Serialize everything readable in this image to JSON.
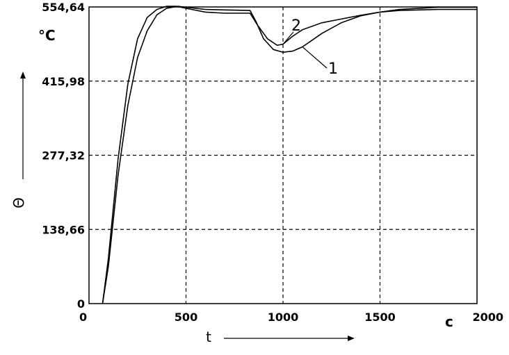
{
  "chart_data": {
    "type": "line",
    "xlabel": "t",
    "ylabel": "Θ",
    "x_unit": "c",
    "y_unit": "°C",
    "xlim": [
      0,
      2000
    ],
    "ylim": [
      0,
      554.64
    ],
    "x_ticks": [
      "0",
      "500",
      "1000",
      "1500",
      "2000"
    ],
    "y_ticks": [
      "0",
      "138,66",
      "277,32",
      "415,98",
      "554,64"
    ],
    "grid": "dashed",
    "series": [
      {
        "name": "1",
        "points": [
          [
            70,
            0
          ],
          [
            100,
            70
          ],
          [
            150,
            240
          ],
          [
            200,
            370
          ],
          [
            250,
            460
          ],
          [
            300,
            510
          ],
          [
            350,
            540
          ],
          [
            400,
            552
          ],
          [
            460,
            556
          ],
          [
            500,
            554
          ],
          [
            600,
            550
          ],
          [
            700,
            549
          ],
          [
            830,
            548
          ],
          [
            860,
            528
          ],
          [
            900,
            495
          ],
          [
            950,
            475
          ],
          [
            1000,
            470
          ],
          [
            1050,
            472
          ],
          [
            1100,
            480
          ],
          [
            1200,
            505
          ],
          [
            1300,
            525
          ],
          [
            1400,
            538
          ],
          [
            1500,
            545
          ],
          [
            1600,
            548
          ],
          [
            1800,
            550
          ],
          [
            2000,
            550
          ]
        ]
      },
      {
        "name": "2",
        "points": [
          [
            70,
            0
          ],
          [
            100,
            85
          ],
          [
            150,
            270
          ],
          [
            200,
            410
          ],
          [
            250,
            495
          ],
          [
            300,
            535
          ],
          [
            350,
            550
          ],
          [
            400,
            556
          ],
          [
            450,
            556
          ],
          [
            500,
            552
          ],
          [
            600,
            545
          ],
          [
            700,
            543
          ],
          [
            830,
            543
          ],
          [
            870,
            520
          ],
          [
            920,
            495
          ],
          [
            970,
            483
          ],
          [
            1000,
            485
          ],
          [
            1050,
            500
          ],
          [
            1100,
            512
          ],
          [
            1200,
            525
          ],
          [
            1300,
            532
          ],
          [
            1400,
            539
          ],
          [
            1500,
            545
          ],
          [
            1600,
            550
          ],
          [
            1800,
            554
          ],
          [
            2000,
            554
          ]
        ]
      }
    ]
  }
}
